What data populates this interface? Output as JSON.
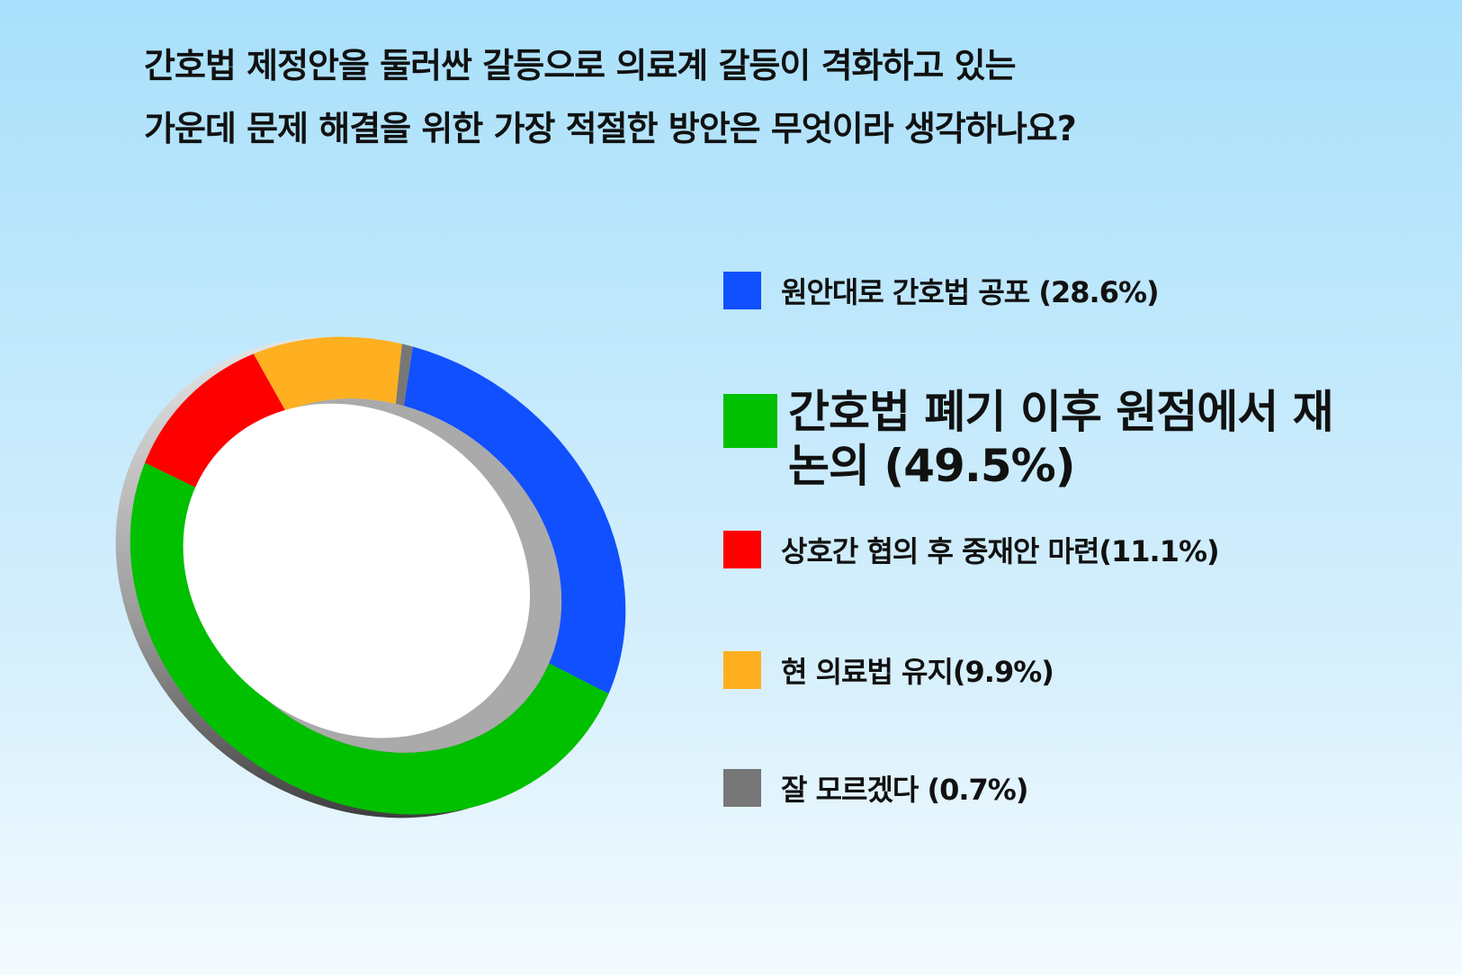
{
  "chart_data": {
    "type": "donut",
    "title": [
      "간호법 제정안을 둘러싼 갈등으로 의료계 갈등이 격화하고 있는",
      "가운데 문제 해결을 위한 가장 적절한 방안은 무엇이라 생각하나요?"
    ],
    "categories": [
      "원안대로 간호법 공포 (28.6%)",
      "간호법 폐기 이후 원점에서 재논의 (49.5%)",
      "상호간 협의 후 중재안 마련(11.1%)",
      "현 의료법 유지(9.9%)",
      "잘 모르겠다 (0.7%)"
    ],
    "values": [
      28.6,
      49.5,
      11.1,
      9.9,
      0.7
    ],
    "colors": [
      "#1150ff",
      "#00c000",
      "#ff0000",
      "#ffb020",
      "#777777"
    ]
  }
}
